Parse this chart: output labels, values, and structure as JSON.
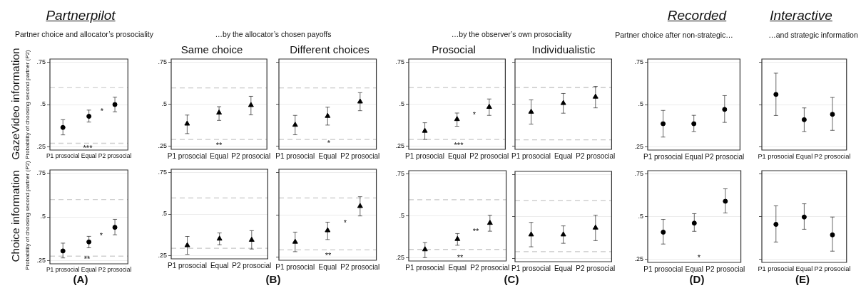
{
  "chart_data": [
    {
      "type": "scatter",
      "title": "Partnerpilot",
      "subtitle": "Partner choice and allocator’s prosociality",
      "ylabel": "Probability of choosing second partner (P2)",
      "categories": [
        "P1 prosocial",
        "Equal",
        "P2 prosocial"
      ],
      "marker": "circle",
      "ylim": [
        0.23,
        0.77
      ],
      "yticks": [
        {
          "value": 0.25,
          "label": ".25"
        },
        {
          "value": 0.5,
          "label": ".5"
        },
        {
          "value": 0.75,
          "label": ".75"
        }
      ],
      "grid": "y",
      "series": [
        {
          "color": "#000000",
          "values": [
            0.364,
            0.43,
            0.5
          ],
          "errors": [
            [
              0.32,
              0.41
            ],
            [
              0.396,
              0.467
            ],
            [
              0.457,
              0.544
            ]
          ]
        }
      ],
      "ref_lines": [
        {
          "axis": "y",
          "value": 0.6,
          "color": "#d0d0d0",
          "line_style": "dashed"
        },
        {
          "axis": "y",
          "value": 0.27,
          "color": "#d0d0d0",
          "line_style": "dashed"
        }
      ],
      "annotations": [
        "***",
        "*",
        "GazeVideo information"
      ]
    },
    {
      "type": "scatter",
      "title": "Same choice",
      "subtitle": "…by the allocator’s chosen payoffs",
      "categories": [
        "P1 prosocial",
        "Equal",
        "P2 prosocial"
      ],
      "marker": "triangle",
      "ylim": [
        0.23,
        0.77
      ],
      "yticks": [
        {
          "value": 0.25,
          "label": ".25"
        },
        {
          "value": 0.5,
          "label": ".5"
        },
        {
          "value": 0.75,
          "label": ".75"
        }
      ],
      "grid": "y",
      "series": [
        {
          "color": "#000000",
          "values": [
            0.383,
            0.449,
            0.494
          ],
          "errors": [
            [
              0.324,
              0.435
            ],
            [
              0.403,
              0.485
            ],
            [
              0.436,
              0.547
            ]
          ]
        }
      ],
      "ref_lines": [
        {
          "axis": "y",
          "value": 0.597,
          "color": "#c8c8c8",
          "line_style": "dashed"
        },
        {
          "axis": "y",
          "value": 0.289,
          "color": "#c8c8c8",
          "line_style": "dashed"
        }
      ],
      "annotations": [
        "**"
      ]
    },
    {
      "type": "scatter",
      "title": "Different choices",
      "categories": [
        "P1 prosocial",
        "Equal",
        "P2 prosocial"
      ],
      "marker": "triangle",
      "ylim": [
        0.23,
        0.77
      ],
      "yticks": [
        {
          "value": 0.25,
          "label": null
        },
        {
          "value": 0.5,
          "label": null
        },
        {
          "value": 0.75,
          "label": null
        }
      ],
      "grid": "y",
      "tick_labels": "x",
      "series": [
        {
          "color": "#000000",
          "values": [
            0.376,
            0.429,
            0.515
          ],
          "errors": [
            [
              0.317,
              0.433
            ],
            [
              0.375,
              0.482
            ],
            [
              0.461,
              0.569
            ]
          ]
        }
      ],
      "ref_lines": [
        {
          "axis": "y",
          "value": 0.597,
          "color": "#c8c8c8",
          "line_style": "dashed"
        },
        {
          "axis": "y",
          "value": 0.289,
          "color": "#c8c8c8",
          "line_style": "dashed"
        }
      ],
      "annotations": [
        "*"
      ]
    },
    {
      "type": "scatter",
      "title": "Prosocial",
      "subtitle": "…by the observer’s  own prosociality",
      "categories": [
        "P1 prosocial",
        "Equal",
        "P2 prosocial"
      ],
      "marker": "triangle",
      "ylim": [
        0.23,
        0.77
      ],
      "yticks": [
        {
          "value": 0.25,
          "label": ".25"
        },
        {
          "value": 0.5,
          "label": ".5"
        },
        {
          "value": 0.75,
          "label": ".75"
        }
      ],
      "grid": "y",
      "series": [
        {
          "color": "#000000",
          "values": [
            0.34,
            0.41,
            0.483
          ],
          "errors": [
            [
              0.289,
              0.389
            ],
            [
              0.368,
              0.447
            ],
            [
              0.433,
              0.531
            ]
          ]
        }
      ],
      "ref_lines": [
        {
          "axis": "y",
          "value": 0.599,
          "color": "#c8c8c8",
          "line_style": "dashed"
        },
        {
          "axis": "y",
          "value": 0.289,
          "color": "#c8c8c8",
          "line_style": "dashed"
        }
      ],
      "annotations": [
        "***",
        "*"
      ]
    },
    {
      "type": "scatter",
      "title": "Individualistic",
      "categories": [
        "P1 prosocial",
        "Equal",
        "P2 prosocial"
      ],
      "marker": "triangle",
      "ylim": [
        0.23,
        0.77
      ],
      "yticks": [
        {
          "value": 0.25,
          "label": null
        },
        {
          "value": 0.5,
          "label": null
        },
        {
          "value": 0.75,
          "label": null
        }
      ],
      "grid": "y",
      "tick_labels": "x",
      "series": [
        {
          "color": "#000000",
          "values": [
            0.454,
            0.506,
            0.544
          ],
          "errors": [
            [
              0.381,
              0.526
            ],
            [
              0.446,
              0.564
            ],
            [
              0.478,
              0.606
            ]
          ]
        }
      ],
      "ref_lines": [
        {
          "axis": "y",
          "value": 0.6,
          "color": "#c8c8c8",
          "line_style": "dashed"
        },
        {
          "axis": "y",
          "value": 0.287,
          "color": "#c8c8c8",
          "line_style": "dashed"
        }
      ]
    },
    {
      "type": "scatter",
      "title": "Recorded",
      "subtitle": "Partner choice after non-strategic…",
      "categories": [
        "P1 prosocial",
        "Equal",
        "P2 prosocial"
      ],
      "marker": "circle",
      "ylim": [
        0.23,
        0.77
      ],
      "yticks": [
        {
          "value": 0.25,
          "label": ".25"
        },
        {
          "value": 0.5,
          "label": ".5"
        },
        {
          "value": 0.75,
          "label": ".75"
        }
      ],
      "grid": "y",
      "series": [
        {
          "color": "#000000",
          "values": [
            0.386,
            0.386,
            0.471
          ],
          "errors": [
            [
              0.307,
              0.465
            ],
            [
              0.34,
              0.436
            ],
            [
              0.394,
              0.553
            ]
          ]
        }
      ]
    },
    {
      "type": "scatter",
      "title": "Interactive",
      "subtitle": "…and strategic information",
      "categories": [
        "P1 prosocial",
        "Equal",
        "P2 prosocial"
      ],
      "marker": "circle",
      "ylim": [
        0.23,
        0.77
      ],
      "yticks": [
        {
          "value": 0.25,
          "label": null
        },
        {
          "value": 0.5,
          "label": null
        },
        {
          "value": 0.75,
          "label": null
        }
      ],
      "grid": "y",
      "tick_labels": "x",
      "series": [
        {
          "color": "#000000",
          "values": [
            0.56,
            0.41,
            0.442
          ],
          "errors": [
            [
              0.435,
              0.686
            ],
            [
              0.34,
              0.48
            ],
            [
              0.347,
              0.542
            ]
          ]
        }
      ]
    },
    {
      "type": "scatter",
      "ylabel": "Probability of choosing second partner (P2)",
      "categories": [
        "P1 prosocial",
        "Equal",
        "P2 prosocial"
      ],
      "marker": "circle",
      "ylim": [
        0.23,
        0.77
      ],
      "yticks": [
        {
          "value": 0.25,
          "label": ".25"
        },
        {
          "value": 0.5,
          "label": ".5"
        },
        {
          "value": 0.75,
          "label": ".75"
        }
      ],
      "grid": "y",
      "series": [
        {
          "color": "#000000",
          "values": [
            0.304,
            0.356,
            0.44
          ],
          "errors": [
            [
              0.264,
              0.349
            ],
            [
              0.322,
              0.388
            ],
            [
              0.397,
              0.486
            ]
          ]
        }
      ],
      "ref_lines": [
        {
          "axis": "y",
          "value": 0.6,
          "color": "#d0d0d0",
          "line_style": "dashed"
        },
        {
          "axis": "y",
          "value": 0.274,
          "color": "#d0d0d0",
          "line_style": "dashed"
        }
      ],
      "annotations": [
        "**",
        "*",
        "Choice information",
        "(A)"
      ]
    },
    {
      "type": "scatter",
      "categories": [
        "P1 prosocial",
        "Equal",
        "P2 prosocial"
      ],
      "marker": "triangle",
      "ylim": [
        0.23,
        0.77
      ],
      "yticks": [
        {
          "value": 0.25,
          "label": ".25"
        },
        {
          "value": 0.5,
          "label": ".5"
        },
        {
          "value": 0.75,
          "label": ".75"
        }
      ],
      "grid": "y",
      "series": [
        {
          "color": "#000000",
          "values": [
            0.311,
            0.351,
            0.344
          ],
          "errors": [
            [
              0.257,
              0.365
            ],
            [
              0.315,
              0.386
            ],
            [
              0.289,
              0.4
            ]
          ]
        }
      ],
      "ref_lines": [
        {
          "axis": "y",
          "value": 0.597,
          "color": "#c8c8c8",
          "line_style": "dashed"
        },
        {
          "axis": "y",
          "value": 0.294,
          "color": "#c8c8c8",
          "line_style": "dashed"
        }
      ],
      "annotations": [
        "(B)"
      ]
    },
    {
      "type": "scatter",
      "categories": [
        "P1 prosocial",
        "Equal",
        "P2 prosocial"
      ],
      "marker": "triangle",
      "ylim": [
        0.23,
        0.77
      ],
      "yticks": [
        {
          "value": 0.25,
          "label": null
        },
        {
          "value": 0.5,
          "label": null
        },
        {
          "value": 0.75,
          "label": null
        }
      ],
      "grid": "y",
      "tick_labels": "x",
      "series": [
        {
          "color": "#000000",
          "values": [
            0.339,
            0.407,
            0.551
          ],
          "errors": [
            [
              0.281,
              0.397
            ],
            [
              0.353,
              0.456
            ],
            [
              0.493,
              0.607
            ]
          ]
        }
      ],
      "ref_lines": [
        {
          "axis": "y",
          "value": 0.6,
          "color": "#c8c8c8",
          "line_style": "dashed"
        },
        {
          "axis": "y",
          "value": 0.292,
          "color": "#c8c8c8",
          "line_style": "dashed"
        }
      ],
      "annotations": [
        "**",
        "*"
      ]
    },
    {
      "type": "scatter",
      "categories": [
        "P1 prosocial",
        "Equal",
        "P2 prosocial"
      ],
      "marker": "triangle",
      "ylim": [
        0.23,
        0.77
      ],
      "yticks": [
        {
          "value": 0.25,
          "label": ".25"
        },
        {
          "value": 0.5,
          "label": ".5"
        },
        {
          "value": 0.75,
          "label": ".75"
        }
      ],
      "grid": "y",
      "series": [
        {
          "color": "#000000",
          "values": [
            0.299,
            0.361,
            0.457
          ],
          "errors": [
            [
              0.25,
              0.34
            ],
            [
              0.324,
              0.394
            ],
            [
              0.408,
              0.503
            ]
          ]
        }
      ],
      "ref_lines": [
        {
          "axis": "y",
          "value": 0.596,
          "color": "#c8c8c8",
          "line_style": "dashed"
        },
        {
          "axis": "y",
          "value": 0.299,
          "color": "#c8c8c8",
          "line_style": "dashed"
        }
      ],
      "annotations": [
        "**",
        "**",
        "(C)"
      ]
    },
    {
      "type": "scatter",
      "categories": [
        "P1 prosocial",
        "Equal",
        "P2 prosocial"
      ],
      "marker": "triangle",
      "ylim": [
        0.23,
        0.77
      ],
      "yticks": [
        {
          "value": 0.25,
          "label": null
        },
        {
          "value": 0.5,
          "label": null
        },
        {
          "value": 0.75,
          "label": null
        }
      ],
      "grid": "y",
      "tick_labels": "x",
      "series": [
        {
          "color": "#000000",
          "values": [
            0.392,
            0.392,
            0.433
          ],
          "errors": [
            [
              0.319,
              0.465
            ],
            [
              0.34,
              0.444
            ],
            [
              0.356,
              0.508
            ]
          ]
        }
      ],
      "ref_lines": [
        {
          "axis": "y",
          "value": 0.596,
          "color": "#c8c8c8",
          "line_style": "dashed"
        },
        {
          "axis": "y",
          "value": 0.29,
          "color": "#c8c8c8",
          "line_style": "dashed"
        }
      ]
    },
    {
      "type": "scatter",
      "categories": [
        "P1 prosocial",
        "Equal",
        "P2 prosocial"
      ],
      "marker": "circle",
      "ylim": [
        0.23,
        0.77
      ],
      "yticks": [
        {
          "value": 0.25,
          "label": ".25"
        },
        {
          "value": 0.5,
          "label": ".5"
        },
        {
          "value": 0.75,
          "label": ".75"
        }
      ],
      "grid": "y",
      "series": [
        {
          "color": "#000000",
          "values": [
            0.408,
            0.461,
            0.59
          ],
          "errors": [
            [
              0.338,
              0.483
            ],
            [
              0.413,
              0.517
            ],
            [
              0.521,
              0.663
            ]
          ]
        }
      ],
      "annotations": [
        "*",
        "(D)"
      ]
    },
    {
      "type": "scatter",
      "categories": [
        "P1 prosocial",
        "Equal",
        "P2 prosocial"
      ],
      "marker": "circle",
      "ylim": [
        0.23,
        0.77
      ],
      "yticks": [
        {
          "value": 0.25,
          "label": null
        },
        {
          "value": 0.5,
          "label": null
        },
        {
          "value": 0.75,
          "label": null
        }
      ],
      "grid": "y",
      "tick_labels": "x",
      "series": [
        {
          "color": "#000000",
          "values": [
            0.454,
            0.497,
            0.392
          ],
          "errors": [
            [
              0.35,
              0.563
            ],
            [
              0.425,
              0.575
            ],
            [
              0.296,
              0.497
            ]
          ]
        }
      ],
      "annotations": [
        "(E)"
      ]
    }
  ]
}
